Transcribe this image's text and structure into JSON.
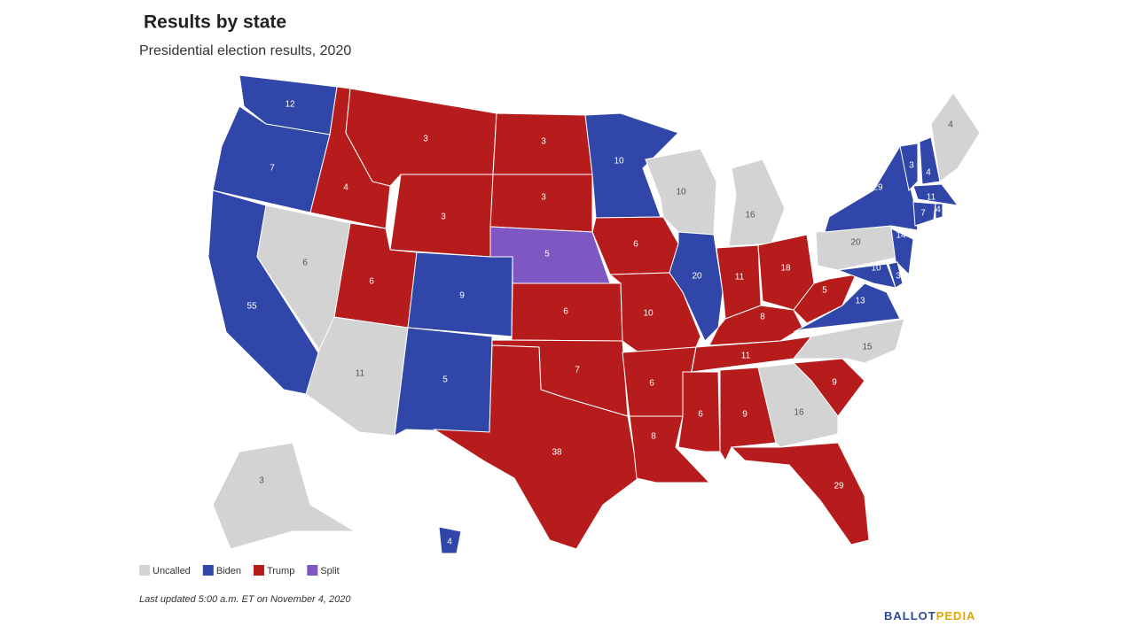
{
  "header": {
    "title": "Results by state",
    "subtitle": "Presidential election results, 2020"
  },
  "legend": [
    {
      "name": "Uncalled",
      "color": "#d3d3d3"
    },
    {
      "name": "Biden",
      "color": "#3047a9"
    },
    {
      "name": "Trump",
      "color": "#b71c1c"
    },
    {
      "name": "Split",
      "color": "#7e57c2"
    }
  ],
  "states": [
    {
      "votes": 12,
      "result": "Biden"
    },
    {
      "votes": 7,
      "result": "Biden"
    },
    {
      "votes": 55,
      "result": "Biden"
    },
    {
      "votes": 6,
      "result": "Uncalled"
    },
    {
      "votes": 4,
      "result": "Trump"
    },
    {
      "votes": 3,
      "result": "Trump"
    },
    {
      "votes": 3,
      "result": "Trump"
    },
    {
      "votes": 6,
      "result": "Trump"
    },
    {
      "votes": 11,
      "result": "Uncalled"
    },
    {
      "votes": 9,
      "result": "Biden"
    },
    {
      "votes": 5,
      "result": "Biden"
    },
    {
      "votes": 3,
      "result": "Trump"
    },
    {
      "votes": 3,
      "result": "Trump"
    },
    {
      "votes": 5,
      "result": "Split"
    },
    {
      "votes": 6,
      "result": "Trump"
    },
    {
      "votes": 7,
      "result": "Trump"
    },
    {
      "votes": 38,
      "result": "Trump"
    },
    {
      "votes": 10,
      "result": "Biden"
    },
    {
      "votes": 6,
      "result": "Trump"
    },
    {
      "votes": 10,
      "result": "Trump"
    },
    {
      "votes": 6,
      "result": "Trump"
    },
    {
      "votes": 8,
      "result": "Trump"
    },
    {
      "votes": 10,
      "result": "Uncalled"
    },
    {
      "votes": 16,
      "result": "Uncalled"
    },
    {
      "votes": 20,
      "result": "Biden"
    },
    {
      "votes": 11,
      "result": "Trump"
    },
    {
      "votes": 18,
      "result": "Trump"
    },
    {
      "votes": 8,
      "result": "Trump"
    },
    {
      "votes": 11,
      "result": "Trump"
    },
    {
      "votes": 6,
      "result": "Trump"
    },
    {
      "votes": 9,
      "result": "Trump"
    },
    {
      "votes": 16,
      "result": "Uncalled"
    },
    {
      "votes": 29,
      "result": "Trump"
    },
    {
      "votes": 9,
      "result": "Trump"
    },
    {
      "votes": 15,
      "result": "Uncalled"
    },
    {
      "votes": 13,
      "result": "Biden"
    },
    {
      "votes": 5,
      "result": "Trump"
    },
    {
      "votes": 20,
      "result": "Uncalled"
    },
    {
      "votes": 29,
      "result": "Biden"
    },
    {
      "votes": 14,
      "result": "Biden"
    },
    {
      "votes": 10,
      "result": "Biden"
    },
    {
      "votes": 3,
      "result": "Biden"
    },
    {
      "votes": 3,
      "result": "Biden"
    },
    {
      "votes": 4,
      "result": "Biden"
    },
    {
      "votes": 4,
      "result": "Uncalled"
    },
    {
      "votes": 11,
      "result": "Biden"
    },
    {
      "votes": 7,
      "result": "Biden"
    },
    {
      "votes": 4,
      "result": "Biden"
    },
    {
      "votes": 3,
      "result": "Uncalled"
    },
    {
      "votes": 4,
      "result": "Biden"
    }
  ],
  "footnote": "Last updated 5:00 a.m. ET on November 4, 2020",
  "logo": {
    "part1": "BALLOT",
    "part2": "PEDIA"
  }
}
